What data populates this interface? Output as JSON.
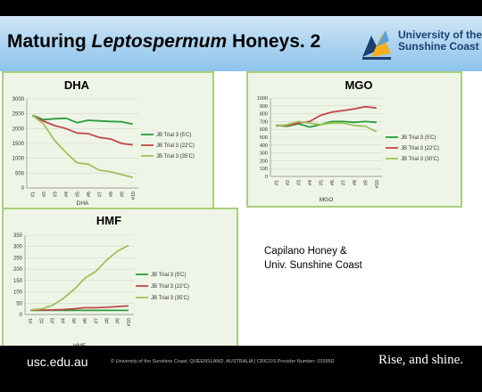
{
  "slide": {
    "title_plain": "Maturing ",
    "title_italic": "Leptospermum",
    "title_rest": " Honeys. 2",
    "credit_line1": "Capilano Honey &",
    "credit_line2": "Univ. Sunshine Coast"
  },
  "logo": {
    "line1": "University of the",
    "line2": "Sunshine Coast"
  },
  "footer": {
    "url": "usc.edu.au",
    "copyright": "© University of the Sunshine Coast, QUEENSLAND, AUSTRALIA  |  CRICOS Provider Number: 01595D",
    "slogan": "Rise, and shine."
  },
  "colors": {
    "series1": "#2a9d3b",
    "series2": "#c4474b",
    "series3": "#9dc45a"
  },
  "chart_data": [
    {
      "type": "line",
      "title": "DHA",
      "xlabel": "DHA",
      "categories": [
        "#1",
        "#2",
        "#3",
        "#4",
        "#5",
        "#6",
        "#7",
        "#8",
        "#9",
        "#10"
      ],
      "ylim": [
        0,
        3000
      ],
      "yticks": [
        0,
        500,
        1000,
        1500,
        2000,
        2500,
        3000
      ],
      "legend": "right",
      "series": [
        {
          "name": "JB Trial 3 (5'C)",
          "values": [
            2450,
            2300,
            2330,
            2350,
            2200,
            2280,
            2260,
            2240,
            2230,
            2150
          ]
        },
        {
          "name": "JB Trial 3 (22'C)",
          "values": [
            2430,
            2250,
            2100,
            2000,
            1850,
            1830,
            1700,
            1650,
            1500,
            1450
          ]
        },
        {
          "name": "JB Trial 3 (35'C)",
          "values": [
            2450,
            2150,
            1600,
            1200,
            850,
            800,
            600,
            550,
            450,
            350
          ]
        }
      ]
    },
    {
      "type": "line",
      "title": "MGO",
      "xlabel": "MGO",
      "categories": [
        "#1",
        "#2",
        "#3",
        "#4",
        "#5",
        "#6",
        "#7",
        "#8",
        "#9",
        "#10"
      ],
      "ylim": [
        0,
        1000
      ],
      "yticks": [
        0,
        100,
        200,
        300,
        400,
        500,
        600,
        700,
        800,
        900,
        1000
      ],
      "legend": "right",
      "series": [
        {
          "name": "JB Trial 3 (5'C)",
          "values": [
            650,
            640,
            670,
            630,
            660,
            700,
            700,
            690,
            700,
            690
          ]
        },
        {
          "name": "JB Trial 3 (22'C)",
          "values": [
            650,
            650,
            680,
            700,
            780,
            820,
            840,
            860,
            890,
            870
          ]
        },
        {
          "name": "JB Trial 3 (30'C)",
          "values": [
            640,
            660,
            700,
            680,
            660,
            680,
            680,
            650,
            640,
            570
          ]
        }
      ]
    },
    {
      "type": "line",
      "title": "HMF",
      "xlabel": "HMF",
      "categories": [
        "#1",
        "#2",
        "#3",
        "#4",
        "#5",
        "#6",
        "#7",
        "#8",
        "#9",
        "#10"
      ],
      "ylim": [
        0,
        350
      ],
      "yticks": [
        0,
        50,
        100,
        150,
        200,
        250,
        300,
        350
      ],
      "legend": "right",
      "series": [
        {
          "name": "JB Trial 3 (5'C)",
          "values": [
            18,
            18,
            18,
            18,
            18,
            18,
            18,
            18,
            18,
            18
          ]
        },
        {
          "name": "JB Trial 3 (22'C)",
          "values": [
            20,
            20,
            20,
            22,
            25,
            30,
            30,
            32,
            35,
            38
          ]
        },
        {
          "name": "JB Trial 3 (35'C)",
          "values": [
            20,
            25,
            40,
            70,
            110,
            160,
            190,
            240,
            280,
            305
          ]
        }
      ]
    }
  ]
}
